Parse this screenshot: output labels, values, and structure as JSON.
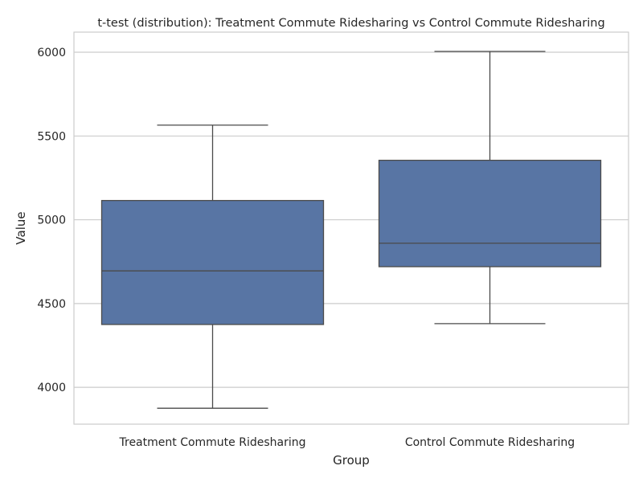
{
  "chart_data": {
    "type": "box",
    "title": "t-test (distribution): Treatment Commute Ridesharing vs Control Commute Ridesharing",
    "xlabel": "Group",
    "ylabel": "Value",
    "ylim": [
      3780,
      6120
    ],
    "yticks": [
      4000,
      4500,
      5000,
      5500,
      6000
    ],
    "grid": true,
    "categories": [
      "Treatment Commute Ridesharing",
      "Control Commute Ridesharing"
    ],
    "boxes": [
      {
        "whisker_low": 3875,
        "q1": 4375,
        "median": 4695,
        "q3": 5115,
        "whisker_high": 5565
      },
      {
        "whisker_low": 4380,
        "q1": 4720,
        "median": 4860,
        "q3": 5355,
        "whisker_high": 6005
      }
    ],
    "colors": {
      "box_fill": "#5875a4",
      "line": "#4a4a4a",
      "grid": "#cccccc",
      "frame": "#cccccc"
    }
  }
}
